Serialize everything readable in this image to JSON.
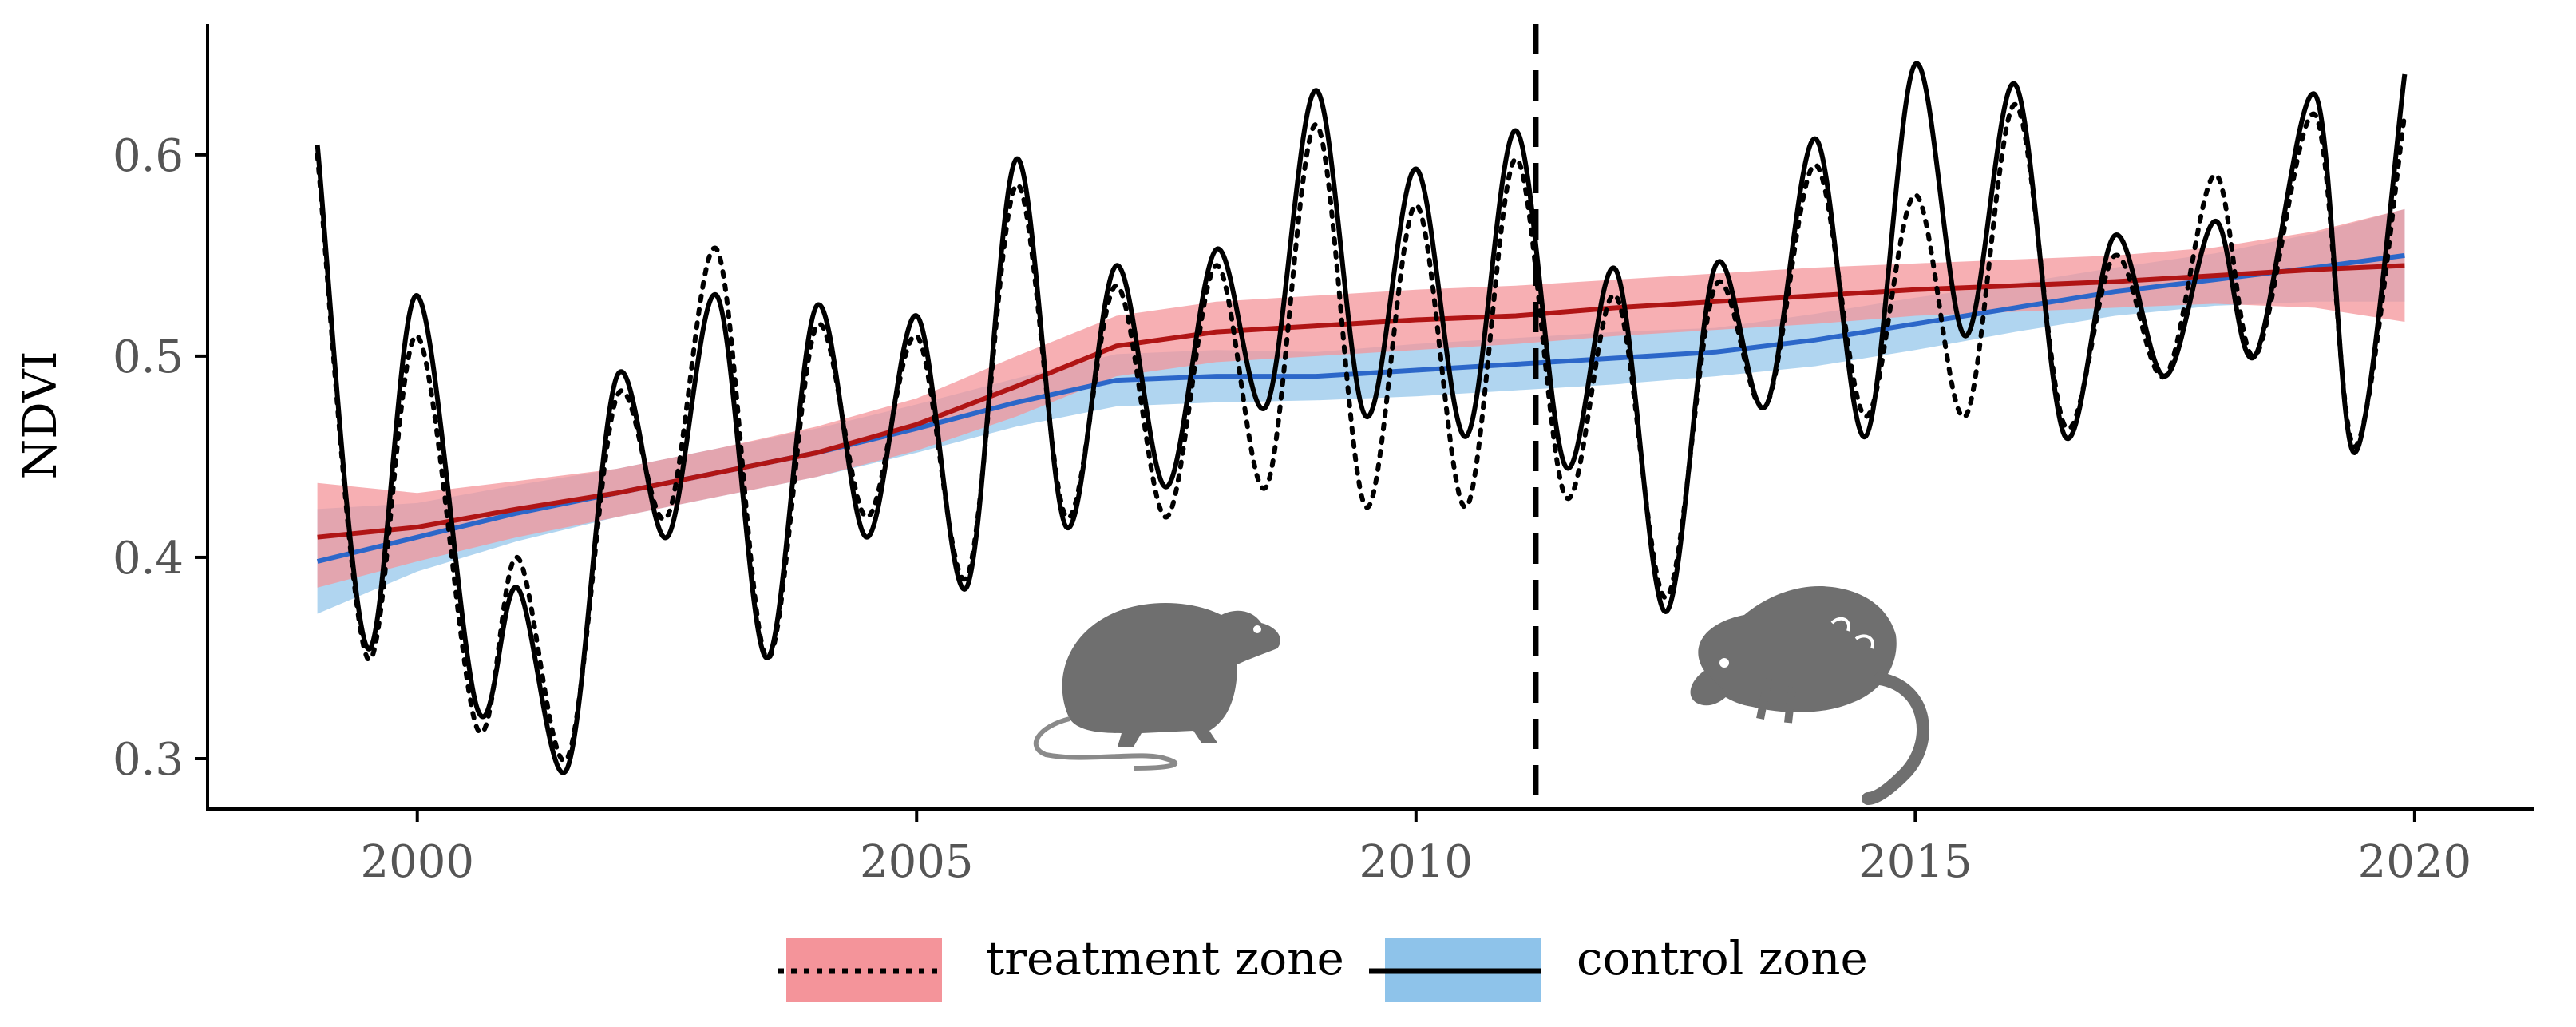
{
  "chart_data": {
    "type": "line",
    "title": "",
    "xlabel": "",
    "ylabel": "NDVI",
    "xlim": [
      1997.9,
      2021.2
    ],
    "ylim": [
      0.275,
      0.665
    ],
    "x_ticks": [
      2000,
      2005,
      2010,
      2015,
      2020
    ],
    "y_ticks": [
      0.3,
      0.4,
      0.5,
      0.6
    ],
    "y_tick_labels": [
      "0.3",
      "0.4",
      "0.5",
      "0.6"
    ],
    "grid": false,
    "legend_position": "bottom",
    "event_line": {
      "x": 2011.2,
      "style": "dashed"
    },
    "colors": {
      "treatment_band": "#f4949a",
      "treatment_trend": "#b01515",
      "control_band": "#8ec3ea",
      "control_trend": "#2c67c9",
      "overlap_trend": "#5a3a8a",
      "series": "#000000"
    },
    "series": [
      {
        "name": "control zone",
        "style": "solid",
        "x": [
          1999,
          1999.5,
          2000,
          2000.6,
          2001,
          2001.5,
          2002,
          2002.5,
          2003,
          2003.5,
          2004,
          2004.5,
          2005,
          2005.5,
          2006,
          2006.5,
          2007,
          2007.5,
          2008,
          2008.5,
          2009,
          2009.5,
          2010,
          2010.5,
          2011,
          2011.5,
          2012,
          2012.5,
          2013,
          2013.5,
          2014,
          2014.5,
          2015,
          2015.5,
          2016,
          2016.5,
          2017,
          2017.5,
          2018,
          2018.4,
          2019,
          2019.4,
          2019.9
        ],
        "values": [
          0.605,
          0.355,
          0.53,
          0.325,
          0.385,
          0.295,
          0.49,
          0.41,
          0.53,
          0.35,
          0.525,
          0.41,
          0.52,
          0.385,
          0.598,
          0.415,
          0.545,
          0.435,
          0.553,
          0.475,
          0.632,
          0.47,
          0.593,
          0.46,
          0.612,
          0.445,
          0.543,
          0.373,
          0.545,
          0.475,
          0.608,
          0.46,
          0.645,
          0.51,
          0.635,
          0.46,
          0.56,
          0.49,
          0.567,
          0.5,
          0.63,
          0.452,
          0.64
        ]
      },
      {
        "name": "treatment zone",
        "style": "dotted",
        "x": [
          1999,
          1999.5,
          2000,
          2000.6,
          2001,
          2001.5,
          2002,
          2002.5,
          2003,
          2003.5,
          2004,
          2004.5,
          2005,
          2005.5,
          2006,
          2006.5,
          2007,
          2007.5,
          2008,
          2008.5,
          2009,
          2009.5,
          2010,
          2010.5,
          2011,
          2011.5,
          2012,
          2012.5,
          2013,
          2013.5,
          2014,
          2014.5,
          2015,
          2015.5,
          2016,
          2016.5,
          2017,
          2017.5,
          2018,
          2018.4,
          2019,
          2019.4,
          2019.9
        ],
        "values": [
          0.6,
          0.35,
          0.51,
          0.315,
          0.4,
          0.3,
          0.48,
          0.42,
          0.553,
          0.35,
          0.515,
          0.42,
          0.51,
          0.39,
          0.585,
          0.42,
          0.535,
          0.42,
          0.545,
          0.435,
          0.615,
          0.425,
          0.575,
          0.425,
          0.598,
          0.43,
          0.53,
          0.38,
          0.535,
          0.475,
          0.595,
          0.47,
          0.58,
          0.47,
          0.625,
          0.465,
          0.55,
          0.49,
          0.59,
          0.5,
          0.62,
          0.455,
          0.62
        ]
      }
    ],
    "trends": [
      {
        "name": "treatment zone",
        "x": [
          1999,
          2000,
          2001,
          2002,
          2003,
          2004,
          2005,
          2006,
          2007,
          2008,
          2009,
          2010,
          2011,
          2012,
          2013,
          2014,
          2015,
          2016,
          2017,
          2018,
          2019,
          2019.9
        ],
        "values": [
          0.41,
          0.415,
          0.424,
          0.432,
          0.442,
          0.452,
          0.466,
          0.485,
          0.505,
          0.512,
          0.515,
          0.518,
          0.52,
          0.524,
          0.527,
          0.53,
          0.533,
          0.535,
          0.537,
          0.54,
          0.543,
          0.545
        ],
        "lower": [
          0.385,
          0.398,
          0.41,
          0.42,
          0.43,
          0.44,
          0.453,
          0.47,
          0.49,
          0.497,
          0.5,
          0.503,
          0.506,
          0.51,
          0.513,
          0.516,
          0.52,
          0.522,
          0.524,
          0.526,
          0.524,
          0.517
        ],
        "upper": [
          0.437,
          0.432,
          0.438,
          0.444,
          0.454,
          0.465,
          0.479,
          0.5,
          0.52,
          0.527,
          0.53,
          0.533,
          0.535,
          0.538,
          0.541,
          0.544,
          0.546,
          0.548,
          0.55,
          0.554,
          0.562,
          0.573
        ]
      },
      {
        "name": "control zone",
        "x": [
          1999,
          2000,
          2001,
          2002,
          2003,
          2004,
          2005,
          2006,
          2007,
          2008,
          2009,
          2010,
          2011,
          2012,
          2013,
          2014,
          2015,
          2016,
          2017,
          2018,
          2019,
          2019.9
        ],
        "values": [
          0.398,
          0.41,
          0.422,
          0.432,
          0.442,
          0.452,
          0.464,
          0.477,
          0.488,
          0.49,
          0.49,
          0.493,
          0.496,
          0.499,
          0.502,
          0.508,
          0.516,
          0.524,
          0.532,
          0.538,
          0.544,
          0.55
        ],
        "lower": [
          0.372,
          0.393,
          0.408,
          0.42,
          0.43,
          0.44,
          0.452,
          0.465,
          0.475,
          0.477,
          0.478,
          0.48,
          0.483,
          0.486,
          0.49,
          0.495,
          0.503,
          0.512,
          0.52,
          0.525,
          0.527,
          0.527
        ],
        "upper": [
          0.424,
          0.427,
          0.436,
          0.444,
          0.454,
          0.464,
          0.476,
          0.489,
          0.501,
          0.503,
          0.502,
          0.506,
          0.509,
          0.512,
          0.514,
          0.521,
          0.529,
          0.536,
          0.544,
          0.551,
          0.561,
          0.573
        ]
      }
    ]
  },
  "legend": {
    "items": [
      {
        "label": "treatment zone",
        "line_style": "dotted",
        "band_color": "#f4949a"
      },
      {
        "label": "control zone",
        "line_style": "solid",
        "band_color": "#8ec3ea"
      }
    ]
  },
  "icons": {
    "before": "rat-silhouette-icon",
    "after": "dead-rat-silhouette-icon"
  }
}
